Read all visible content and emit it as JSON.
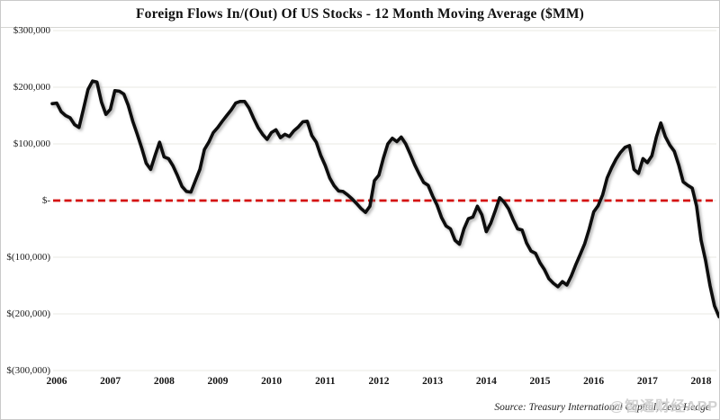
{
  "header": {
    "title": "Foreign Flows In/(Out) Of US Stocks  - 12 Month Moving Average ($MM)"
  },
  "footer": {
    "source": "Source: Treasury International Capital, Zero Hedge",
    "watermark": "@智通财经APP"
  },
  "colors": {
    "line": "#0d0d0d",
    "zero_line": "#d40f0f",
    "grid": "#e9e9e3",
    "frame_border": "#c9c9c9",
    "background": "#ffffff"
  },
  "chart_data": {
    "type": "line",
    "title": "Foreign Flows In/(Out) Of US Stocks  - 12 Month Moving Average ($MM)",
    "xlabel": "",
    "ylabel": "",
    "ylim": [
      -300000,
      300000
    ],
    "grid": "horizontal",
    "y_ticks": [
      "$300,000",
      "$200,000",
      "$100,000",
      "$-",
      "$(100,000)",
      "$(200,000)",
      "$(300,000)"
    ],
    "y_tick_values": [
      300000,
      200000,
      100000,
      0,
      -100000,
      -200000,
      -300000
    ],
    "x_ticks": [
      "2006",
      "2007",
      "2008",
      "2009",
      "2010",
      "2011",
      "2012",
      "2013",
      "2014",
      "2015",
      "2016",
      "2017",
      "2018"
    ],
    "zero_reference_line": {
      "value": 0,
      "style": "dashed",
      "color": "#d40f0f"
    },
    "series": [
      {
        "name": "Foreign Flows In/(Out) of US Stocks, 12-month moving average ($MM)",
        "interval": "monthly",
        "start": "2005-12",
        "end": "2018-05",
        "values": [
          171000,
          172000,
          157000,
          150000,
          146000,
          134000,
          129000,
          162000,
          196000,
          211000,
          209000,
          174000,
          152000,
          161000,
          194000,
          193000,
          188000,
          168000,
          140000,
          117000,
          93000,
          66000,
          55000,
          80000,
          103000,
          77000,
          74000,
          61000,
          44000,
          25000,
          16000,
          15000,
          35000,
          55000,
          90000,
          103000,
          120000,
          129000,
          140000,
          150000,
          160000,
          172000,
          175000,
          175000,
          163000,
          145000,
          129000,
          117000,
          108000,
          120000,
          125000,
          111000,
          117000,
          113000,
          123000,
          130000,
          139000,
          140000,
          115000,
          103000,
          80000,
          62000,
          40000,
          26000,
          17000,
          16000,
          10000,
          3000,
          -5000,
          -14000,
          -21000,
          -10000,
          35000,
          45000,
          75000,
          100000,
          110000,
          104000,
          112000,
          100000,
          82000,
          63000,
          47000,
          32000,
          27000,
          8000,
          -8000,
          -30000,
          -45000,
          -50000,
          -70000,
          -77000,
          -50000,
          -32000,
          -29000,
          -10000,
          -25000,
          -55000,
          -40000,
          -18000,
          5000,
          -3000,
          -15000,
          -34000,
          -50000,
          -52000,
          -75000,
          -89000,
          -93000,
          -110000,
          -122000,
          -138000,
          -146000,
          -152000,
          -143000,
          -149000,
          -133000,
          -113000,
          -95000,
          -76000,
          -50000,
          -20000,
          -9000,
          10000,
          40000,
          58000,
          73000,
          85000,
          94000,
          97000,
          55000,
          48000,
          74000,
          67000,
          79000,
          112000,
          137000,
          113000,
          98000,
          87000,
          63000,
          33000,
          27000,
          22000,
          -10000,
          -70000,
          -106000,
          -150000,
          -186000,
          -205000
        ]
      }
    ]
  }
}
